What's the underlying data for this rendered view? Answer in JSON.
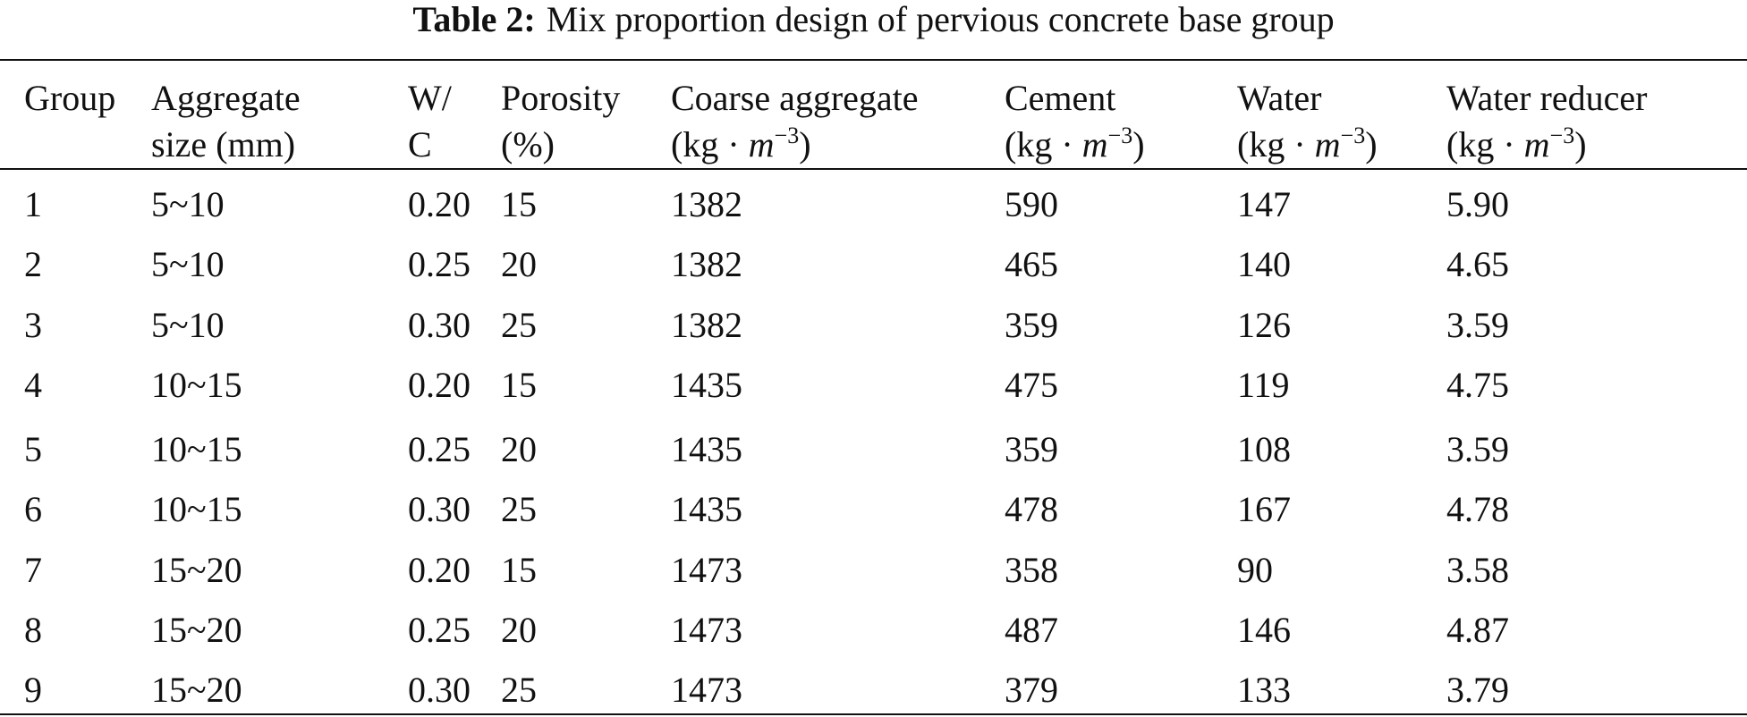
{
  "caption": {
    "label": "Table 2:",
    "text": "Mix proportion design of pervious concrete base group"
  },
  "table": {
    "columns": [
      {
        "line1": "Group"
      },
      {
        "line1": "Aggregate",
        "line2": "size (mm)"
      },
      {
        "line1": "W/",
        "line2": "C"
      },
      {
        "line1": "Porosity",
        "line2": "(%)"
      },
      {
        "line1": "Coarse aggregate",
        "unit": {
          "base": "(kg · ",
          "var": "m",
          "exp": "−3",
          "close": ")"
        }
      },
      {
        "line1": "Cement",
        "unit": {
          "base": "(kg · ",
          "var": "m",
          "exp": "−3",
          "close": ")"
        }
      },
      {
        "line1": "Water",
        "unit": {
          "base": "(kg · ",
          "var": "m",
          "exp": "−3",
          "close": ")"
        }
      },
      {
        "line1": "Water reducer",
        "unit": {
          "base": "(kg · ",
          "var": "m",
          "exp": "−3",
          "close": ")"
        }
      }
    ],
    "rows": [
      [
        "1",
        "5~10",
        "0.20",
        "15",
        "1382",
        "590",
        "147",
        "5.90"
      ],
      [
        "2",
        "5~10",
        "0.25",
        "20",
        "1382",
        "465",
        "140",
        "4.65"
      ],
      [
        "3",
        "5~10",
        "0.30",
        "25",
        "1382",
        "359",
        "126",
        "3.59"
      ],
      [
        "4",
        "10~15",
        "0.20",
        "15",
        "1435",
        "475",
        "119",
        "4.75"
      ],
      [
        "5",
        "10~15",
        "0.25",
        "20",
        "1435",
        "359",
        "108",
        "3.59"
      ],
      [
        "6",
        "10~15",
        "0.30",
        "25",
        "1435",
        "478",
        "167",
        "4.78"
      ],
      [
        "7",
        "15~20",
        "0.20",
        "15",
        "1473",
        "358",
        "90",
        "3.58"
      ],
      [
        "8",
        "15~20",
        "0.25",
        "20",
        "1473",
        "487",
        "146",
        "4.87"
      ],
      [
        "9",
        "15~20",
        "0.30",
        "25",
        "1473",
        "379",
        "133",
        "3.79"
      ]
    ]
  }
}
